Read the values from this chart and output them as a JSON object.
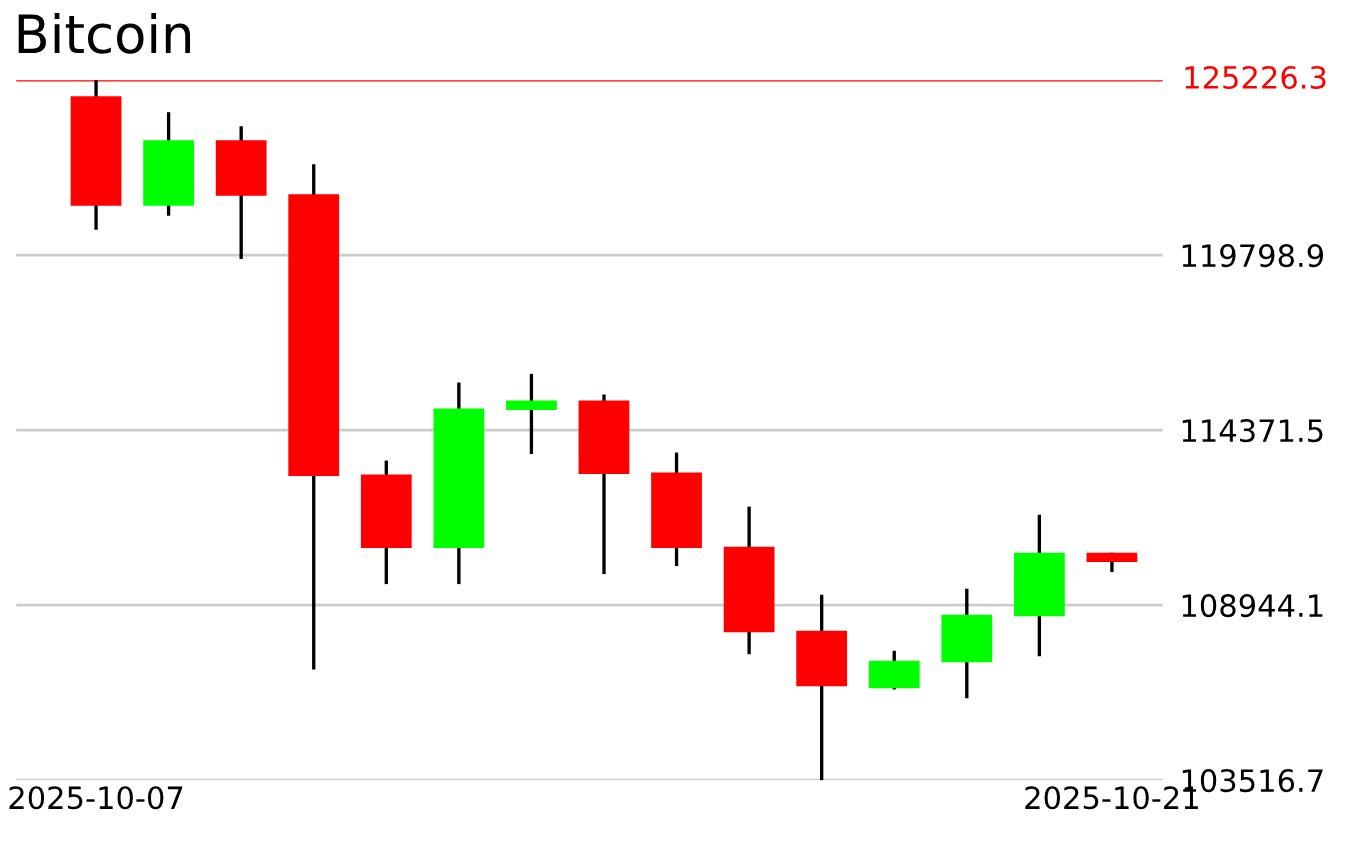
{
  "chart_data": {
    "type": "candlestick",
    "title": "Bitcoin",
    "categories": [
      "2025-10-07",
      null,
      null,
      null,
      null,
      null,
      null,
      null,
      null,
      null,
      null,
      null,
      null,
      null,
      "2025-10-21"
    ],
    "ohlc": [
      [
        124729,
        125226.3,
        120587,
        121333
      ],
      [
        121333,
        124233,
        121022,
        123363
      ],
      [
        123363,
        123798,
        119681,
        121643
      ],
      [
        121686,
        122618,
        106950,
        112949
      ],
      [
        112993,
        113427,
        109596,
        110714
      ],
      [
        110714,
        115849,
        109596,
        115042
      ],
      [
        114998,
        116116,
        113632,
        115290
      ],
      [
        115290,
        115477,
        109906,
        113011
      ],
      [
        113055,
        113676,
        110155,
        110714
      ],
      [
        110757,
        112000,
        107422,
        108105
      ],
      [
        108149,
        109267,
        103516.7,
        106428
      ],
      [
        106366,
        107527,
        106329,
        107217
      ],
      [
        107173,
        109453,
        106056,
        108646
      ],
      [
        108602,
        111751,
        107360,
        110571
      ],
      [
        110571,
        110571,
        109968,
        110279
      ]
    ],
    "ylim": [
      103516.7,
      125226.3
    ],
    "yticks": [
      103516.7,
      108944.1,
      114371.5,
      119798.9
    ],
    "ref_lines": [
      {
        "axis": "y",
        "value": 125226.3,
        "label": "125226.3",
        "color": "#ff0000"
      }
    ],
    "grid": "y"
  }
}
